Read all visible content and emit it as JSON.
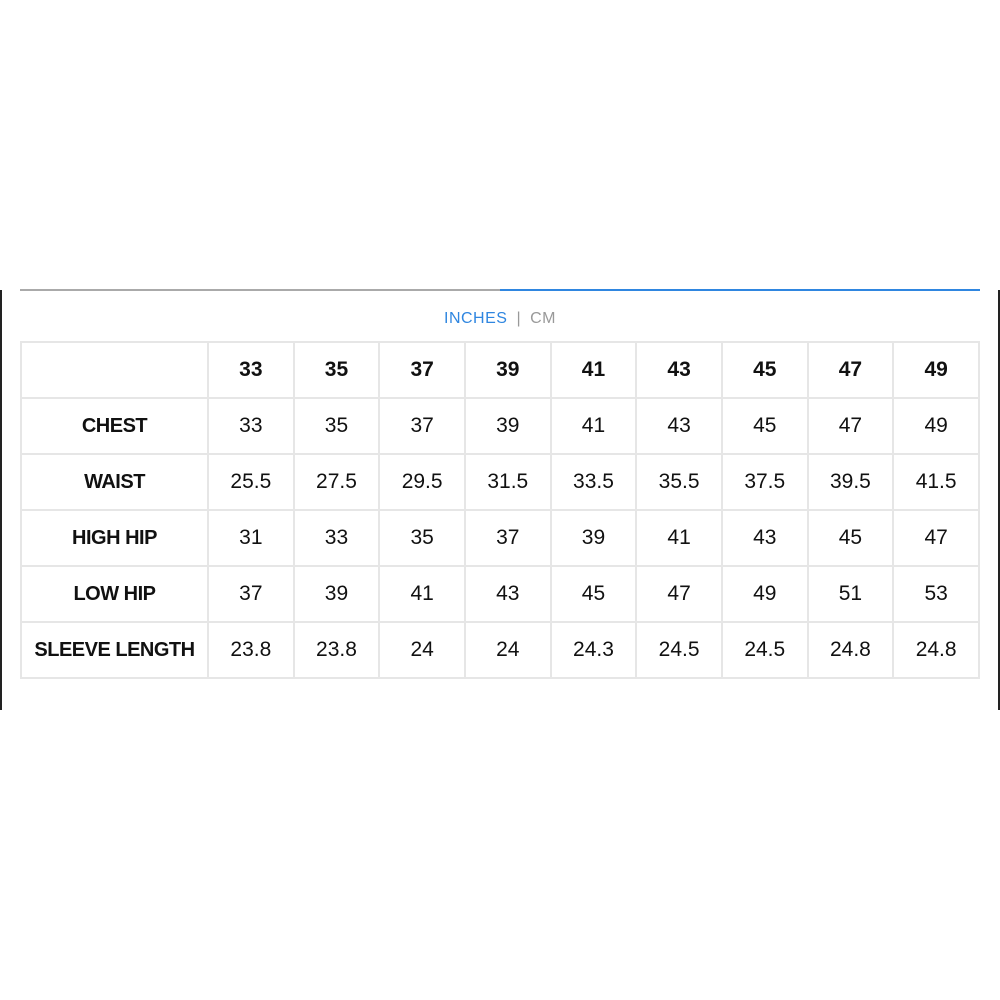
{
  "tabs": {
    "active_color": "#2f86e0",
    "inactive_color": "#aaaaaa"
  },
  "units": {
    "inches": "INCHES",
    "separator": "|",
    "cm": "CM",
    "selected": "INCHES"
  },
  "table": {
    "headers": [
      "",
      "33",
      "35",
      "37",
      "39",
      "41",
      "43",
      "45",
      "47",
      "49"
    ],
    "rows": [
      {
        "label": "CHEST",
        "values": [
          "33",
          "35",
          "37",
          "39",
          "41",
          "43",
          "45",
          "47",
          "49"
        ]
      },
      {
        "label": "WAIST",
        "values": [
          "25.5",
          "27.5",
          "29.5",
          "31.5",
          "33.5",
          "35.5",
          "37.5",
          "39.5",
          "41.5"
        ]
      },
      {
        "label": "HIGH HIP",
        "values": [
          "31",
          "33",
          "35",
          "37",
          "39",
          "41",
          "43",
          "45",
          "47"
        ]
      },
      {
        "label": "LOW HIP",
        "values": [
          "37",
          "39",
          "41",
          "43",
          "45",
          "47",
          "49",
          "51",
          "53"
        ]
      },
      {
        "label": "SLEEVE LENGTH",
        "values": [
          "23.8",
          "23.8",
          "24",
          "24",
          "24.3",
          "24.5",
          "24.5",
          "24.8",
          "24.8"
        ]
      }
    ]
  }
}
